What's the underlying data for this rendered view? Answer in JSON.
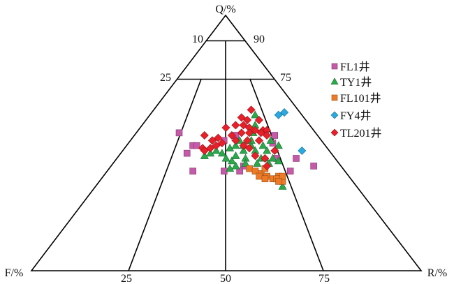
{
  "chart_data": {
    "type": "scatter",
    "subtype": "ternary",
    "axes": {
      "top": "Q/%",
      "left": "F/%",
      "right": "R/%"
    },
    "q_line_labels": {
      "q90_left": "10",
      "q90_right": "90",
      "q75_left": "25",
      "q75_right": "75"
    },
    "base_tick_labels": [
      "25",
      "50",
      "75"
    ],
    "legend_position": "right",
    "point_format": "[Q, F, R] percent",
    "series": [
      {
        "name": "FL1井",
        "marker": "square",
        "color": "#c45aa8",
        "points": [
          [
            54,
            35,
            11
          ],
          [
            46,
            37,
            17
          ],
          [
            49,
            34,
            17
          ],
          [
            49,
            33,
            18
          ],
          [
            39,
            39,
            22
          ],
          [
            39,
            31,
            30
          ],
          [
            41,
            25,
            34
          ],
          [
            53,
            11,
            36
          ],
          [
            44,
            15,
            41
          ],
          [
            44,
            10,
            46
          ],
          [
            41,
            7,
            52
          ],
          [
            39,
            14,
            47
          ],
          [
            50,
            13,
            37
          ],
          [
            39,
            27,
            34
          ],
          [
            53,
            21,
            26
          ],
          [
            51,
            25,
            24
          ]
        ]
      },
      {
        "name": "TY1井",
        "marker": "triangle",
        "color": "#2aa84a",
        "points": [
          [
            61,
            12,
            27
          ],
          [
            46,
            31,
            23
          ],
          [
            47,
            29,
            24
          ],
          [
            46,
            28,
            26
          ],
          [
            48,
            25,
            27
          ],
          [
            43,
            27,
            30
          ],
          [
            41,
            27,
            32
          ],
          [
            45,
            25,
            30
          ],
          [
            47,
            22,
            31
          ],
          [
            44,
            23,
            33
          ],
          [
            49,
            19,
            32
          ],
          [
            51,
            18,
            31
          ],
          [
            47,
            19,
            34
          ],
          [
            44,
            19,
            37
          ],
          [
            49,
            16,
            35
          ],
          [
            47,
            16,
            37
          ],
          [
            51,
            13,
            36
          ],
          [
            44,
            16,
            40
          ],
          [
            49,
            12,
            39
          ],
          [
            54,
            16,
            30
          ],
          [
            51,
            19,
            30
          ],
          [
            51,
            21,
            28
          ],
          [
            49,
            23,
            28
          ],
          [
            44,
            28,
            28
          ],
          [
            40,
            29,
            31
          ],
          [
            42,
            24,
            34
          ],
          [
            42,
            21,
            37
          ],
          [
            44,
            18,
            38
          ],
          [
            33,
            19,
            48
          ],
          [
            45,
            33,
            22
          ],
          [
            42,
            18,
            40
          ],
          [
            43,
            15,
            42
          ],
          [
            57,
            14,
            29
          ],
          [
            49,
            21,
            30
          ]
        ]
      },
      {
        "name": "FL101井",
        "marker": "square",
        "color": "#ec7a26",
        "points": [
          [
            40,
            24,
            36
          ],
          [
            39,
            23,
            38
          ],
          [
            38,
            22,
            40
          ],
          [
            40,
            20,
            40
          ],
          [
            37,
            21,
            42
          ],
          [
            36,
            20,
            44
          ],
          [
            37,
            18,
            45
          ],
          [
            35,
            18,
            47
          ],
          [
            37,
            17,
            46
          ],
          [
            37,
            23,
            40
          ],
          [
            36,
            22,
            42
          ],
          [
            36,
            19,
            45
          ],
          [
            35,
            19,
            46
          ]
        ]
      },
      {
        "name": "FY4井",
        "marker": "diamond",
        "color": "#2aa9e0",
        "points": [
          [
            61,
            6,
            33
          ],
          [
            62,
            4,
            34
          ],
          [
            47,
            7,
            46
          ]
        ]
      },
      {
        "name": "TL201井",
        "marker": "diamond",
        "color": "#e8202a",
        "points": [
          [
            63,
            12,
            25
          ],
          [
            60,
            16,
            24
          ],
          [
            59,
            15,
            26
          ],
          [
            59,
            12,
            29
          ],
          [
            57,
            19,
            24
          ],
          [
            57,
            17,
            26
          ],
          [
            56,
            16,
            28
          ],
          [
            56,
            22,
            22
          ],
          [
            55,
            15,
            30
          ],
          [
            55,
            13,
            32
          ],
          [
            55,
            12,
            33
          ],
          [
            54,
            19,
            27
          ],
          [
            54,
            17,
            29
          ],
          [
            54,
            14,
            32
          ],
          [
            53,
            13,
            34
          ],
          [
            53,
            29,
            18
          ],
          [
            51,
            28,
            21
          ],
          [
            52,
            26,
            22
          ],
          [
            50,
            26,
            24
          ],
          [
            53,
            22,
            25
          ],
          [
            51,
            22,
            27
          ],
          [
            51,
            16,
            33
          ],
          [
            51,
            28,
            21
          ],
          [
            48,
            32,
            20
          ],
          [
            48,
            30,
            22
          ],
          [
            49,
            28,
            23
          ],
          [
            49,
            21,
            30
          ],
          [
            48,
            20,
            32
          ],
          [
            47,
            32,
            21
          ],
          [
            47,
            14,
            39
          ],
          [
            45,
            20,
            35
          ],
          [
            44,
            18,
            38
          ],
          [
            41,
            19,
            40
          ],
          [
            51,
            19,
            30
          ]
        ]
      }
    ]
  }
}
